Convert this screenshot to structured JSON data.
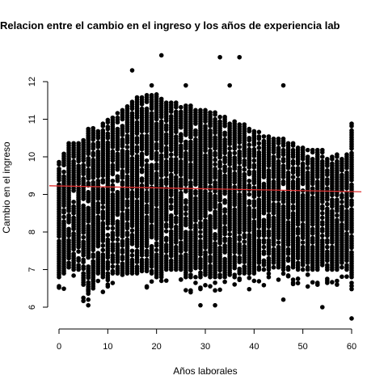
{
  "chart_data": {
    "type": "scatter",
    "title": "Relacion entre el cambio en el ingreso y los años de experiencia lab",
    "xlabel": "Años laborales",
    "ylabel": "Cambio en el ingreso",
    "xlim": [
      0,
      60
    ],
    "ylim": [
      5.7,
      12.7
    ],
    "x_ticks": [
      "0",
      "10",
      "20",
      "30",
      "40",
      "50",
      "60"
    ],
    "y_ticks": [
      "6",
      "7",
      "8",
      "9",
      "10",
      "11",
      "12"
    ],
    "grid": false,
    "legend": "none",
    "point_color": "#000000",
    "x_step": 1,
    "y_bands": [
      [
        6.8,
        9.9
      ],
      [
        6.9,
        10.1
      ],
      [
        7.0,
        10.4
      ],
      [
        7.0,
        10.4
      ],
      [
        7.0,
        10.4
      ],
      [
        6.6,
        10.5
      ],
      [
        6.3,
        10.8
      ],
      [
        6.5,
        10.8
      ],
      [
        6.9,
        10.7
      ],
      [
        6.8,
        10.9
      ],
      [
        6.6,
        11.0
      ],
      [
        6.9,
        11.1
      ],
      [
        6.9,
        11.2
      ],
      [
        6.8,
        11.3
      ],
      [
        6.9,
        11.4
      ],
      [
        6.9,
        11.5
      ],
      [
        6.9,
        11.6
      ],
      [
        6.9,
        11.6
      ],
      [
        6.9,
        11.7
      ],
      [
        6.9,
        11.7
      ],
      [
        6.8,
        11.7
      ],
      [
        6.8,
        11.6
      ],
      [
        7.0,
        11.5
      ],
      [
        7.0,
        11.5
      ],
      [
        7.0,
        11.5
      ],
      [
        7.0,
        11.4
      ],
      [
        6.8,
        11.4
      ],
      [
        6.8,
        11.4
      ],
      [
        6.8,
        11.3
      ],
      [
        6.8,
        11.3
      ],
      [
        6.8,
        11.3
      ],
      [
        6.8,
        11.2
      ],
      [
        6.8,
        11.2
      ],
      [
        6.8,
        11.1
      ],
      [
        6.8,
        11.1
      ],
      [
        6.8,
        11.0
      ],
      [
        6.8,
        11.0
      ],
      [
        6.9,
        10.9
      ],
      [
        6.9,
        10.9
      ],
      [
        6.9,
        10.8
      ],
      [
        6.9,
        10.7
      ],
      [
        7.0,
        10.7
      ],
      [
        7.0,
        10.6
      ],
      [
        7.0,
        10.6
      ],
      [
        7.0,
        10.5
      ],
      [
        7.0,
        10.5
      ],
      [
        7.0,
        10.5
      ],
      [
        7.0,
        10.4
      ],
      [
        7.0,
        10.4
      ],
      [
        7.0,
        10.3
      ],
      [
        7.0,
        10.3
      ],
      [
        7.0,
        10.2
      ],
      [
        7.0,
        10.2
      ],
      [
        7.0,
        10.2
      ],
      [
        7.0,
        10.2
      ],
      [
        7.0,
        10.1
      ],
      [
        7.0,
        10.1
      ],
      [
        7.0,
        10.1
      ],
      [
        7.0,
        10.0
      ],
      [
        7.0,
        10.1
      ],
      [
        6.8,
        10.9
      ]
    ],
    "outliers": [
      {
        "x": 0,
        "y": 6.8
      },
      {
        "x": 6,
        "y": 6.2
      },
      {
        "x": 6,
        "y": 6.05
      },
      {
        "x": 6,
        "y": 6.45
      },
      {
        "x": 10,
        "y": 6.55
      },
      {
        "x": 15,
        "y": 12.3
      },
      {
        "x": 19,
        "y": 11.9
      },
      {
        "x": 21,
        "y": 12.7
      },
      {
        "x": 21,
        "y": 6.7
      },
      {
        "x": 26,
        "y": 11.9
      },
      {
        "x": 26,
        "y": 6.45
      },
      {
        "x": 29,
        "y": 6.05
      },
      {
        "x": 32,
        "y": 6.05
      },
      {
        "x": 33,
        "y": 12.65
      },
      {
        "x": 35,
        "y": 11.9
      },
      {
        "x": 37,
        "y": 12.65
      },
      {
        "x": 46,
        "y": 11.9
      },
      {
        "x": 46,
        "y": 6.2
      },
      {
        "x": 51,
        "y": 6.55
      },
      {
        "x": 54,
        "y": 6.0
      },
      {
        "x": 60,
        "y": 5.7
      },
      {
        "x": 60,
        "y": 6.8
      },
      {
        "x": 57,
        "y": 6.6
      },
      {
        "x": 55,
        "y": 6.7
      },
      {
        "x": 43,
        "y": 6.8
      },
      {
        "x": 40,
        "y": 6.7
      }
    ],
    "reference_line": {
      "color": "#e03030",
      "x0": -2,
      "x1": 62,
      "y0": 9.23,
      "y1": 9.07
    }
  }
}
